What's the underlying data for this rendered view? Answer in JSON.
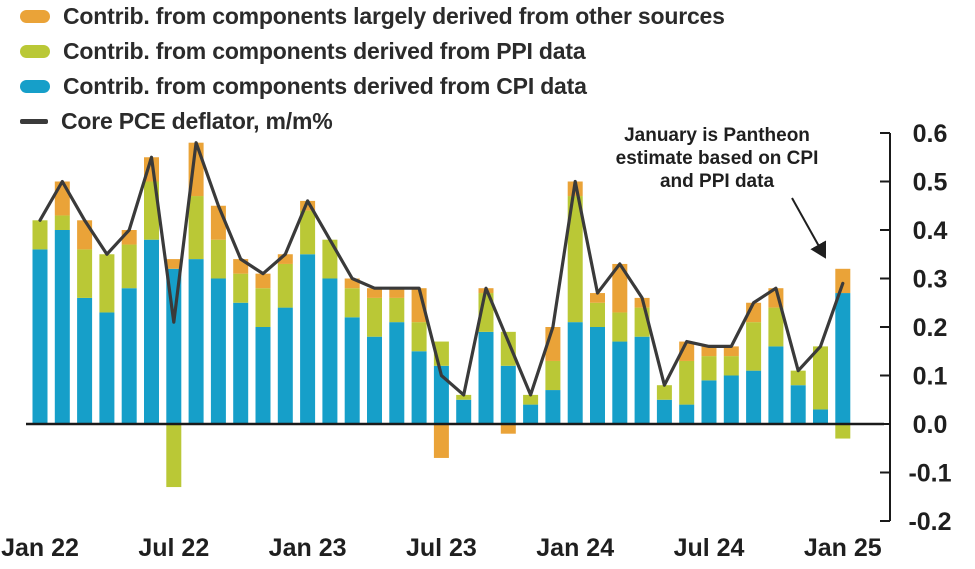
{
  "legend": {
    "items": [
      {
        "key": "other",
        "label": "Contrib. from components largely derived from other sources",
        "color": "#EAA338",
        "type": "swatch"
      },
      {
        "key": "ppi",
        "label": "Contrib. from components derived from PPI data",
        "color": "#BAC836",
        "type": "swatch"
      },
      {
        "key": "cpi",
        "label": "Contrib. from components derived from CPI data",
        "color": "#169FC9",
        "type": "swatch"
      },
      {
        "key": "core-pce",
        "label": "Core PCE deflator, m/m%",
        "color": "#3A3A3A",
        "type": "line"
      }
    ]
  },
  "annotation": {
    "line1": "January is Pantheon",
    "line2": "estimate based on CPI",
    "line3": "and PPI data",
    "full_text": "January is Pantheon estimate based on CPI and PPI data"
  },
  "chart_data": {
    "type": "bar",
    "subtype": "stacked-bar-with-line",
    "x": [
      "Jan 22",
      "Feb 22",
      "Mar 22",
      "Apr 22",
      "May 22",
      "Jun 22",
      "Jul 22",
      "Aug 22",
      "Sep 22",
      "Oct 22",
      "Nov 22",
      "Dec 22",
      "Jan 23",
      "Feb 23",
      "Mar 23",
      "Apr 23",
      "May 23",
      "Jun 23",
      "Jul 23",
      "Aug 23",
      "Sep 23",
      "Oct 23",
      "Nov 23",
      "Dec 23",
      "Jan 24",
      "Feb 24",
      "Mar 24",
      "Apr 24",
      "May 24",
      "Jun 24",
      "Jul 24",
      "Aug 24",
      "Sep 24",
      "Oct 24",
      "Nov 24",
      "Dec 24",
      "Jan 25"
    ],
    "x_ticks": [
      {
        "index": 0,
        "label": "Jan 22"
      },
      {
        "index": 6,
        "label": "Jul 22"
      },
      {
        "index": 12,
        "label": "Jan 23"
      },
      {
        "index": 18,
        "label": "Jul 23"
      },
      {
        "index": 24,
        "label": "Jan 24"
      },
      {
        "index": 30,
        "label": "Jul 24"
      },
      {
        "index": 36,
        "label": "Jan 25"
      }
    ],
    "y_ticks": [
      "0.6",
      "0.5",
      "0.4",
      "0.3",
      "0.2",
      "0.1",
      "0.0",
      "-0.1",
      "-0.2"
    ],
    "ylim": [
      -0.2,
      0.6
    ],
    "grid": false,
    "legend_position": "top-left",
    "series": [
      {
        "key": "cpi",
        "name": "Contrib. from components derived from CPI data",
        "color": "#169FC9",
        "values": [
          0.36,
          0.4,
          0.26,
          0.23,
          0.28,
          0.38,
          0.32,
          0.34,
          0.3,
          0.25,
          0.2,
          0.24,
          0.35,
          0.3,
          0.22,
          0.18,
          0.21,
          0.15,
          0.12,
          0.05,
          0.19,
          0.12,
          0.04,
          0.07,
          0.21,
          0.2,
          0.17,
          0.18,
          0.05,
          0.04,
          0.09,
          0.1,
          0.11,
          0.16,
          0.08,
          0.03,
          0.27
        ]
      },
      {
        "key": "ppi",
        "name": "Contrib. from components derived from PPI data",
        "color": "#BAC836",
        "values": [
          0.06,
          0.03,
          0.1,
          0.12,
          0.09,
          0.12,
          -0.13,
          0.13,
          0.08,
          0.06,
          0.08,
          0.09,
          0.09,
          0.08,
          0.06,
          0.08,
          0.05,
          0.06,
          0.05,
          0.01,
          0.08,
          0.07,
          0.02,
          0.06,
          0.26,
          0.05,
          0.06,
          0.06,
          0.03,
          0.09,
          0.05,
          0.04,
          0.1,
          0.08,
          0.03,
          0.13,
          -0.03
        ]
      },
      {
        "key": "other",
        "name": "Contrib. from components largely derived from other sources",
        "color": "#EAA338",
        "values": [
          0.0,
          0.07,
          0.06,
          0.0,
          0.03,
          0.05,
          0.02,
          0.11,
          0.07,
          0.03,
          0.03,
          0.02,
          0.02,
          0.0,
          0.02,
          0.02,
          0.02,
          0.07,
          -0.07,
          0.0,
          0.01,
          -0.02,
          0.0,
          0.07,
          0.03,
          0.02,
          0.1,
          0.02,
          0.0,
          0.04,
          0.02,
          0.02,
          0.04,
          0.04,
          0.0,
          0.0,
          0.05
        ]
      }
    ],
    "line": {
      "key": "core-pce",
      "name": "Core PCE deflator, m/m%",
      "color": "#3A3A3A",
      "values": [
        0.42,
        0.5,
        0.42,
        0.35,
        0.4,
        0.55,
        0.21,
        0.58,
        0.45,
        0.34,
        0.31,
        0.35,
        0.46,
        0.38,
        0.3,
        0.28,
        0.28,
        0.28,
        0.1,
        0.06,
        0.28,
        0.17,
        0.06,
        0.2,
        0.5,
        0.27,
        0.33,
        0.26,
        0.08,
        0.17,
        0.16,
        0.16,
        0.25,
        0.28,
        0.11,
        0.16,
        0.29
      ]
    }
  }
}
